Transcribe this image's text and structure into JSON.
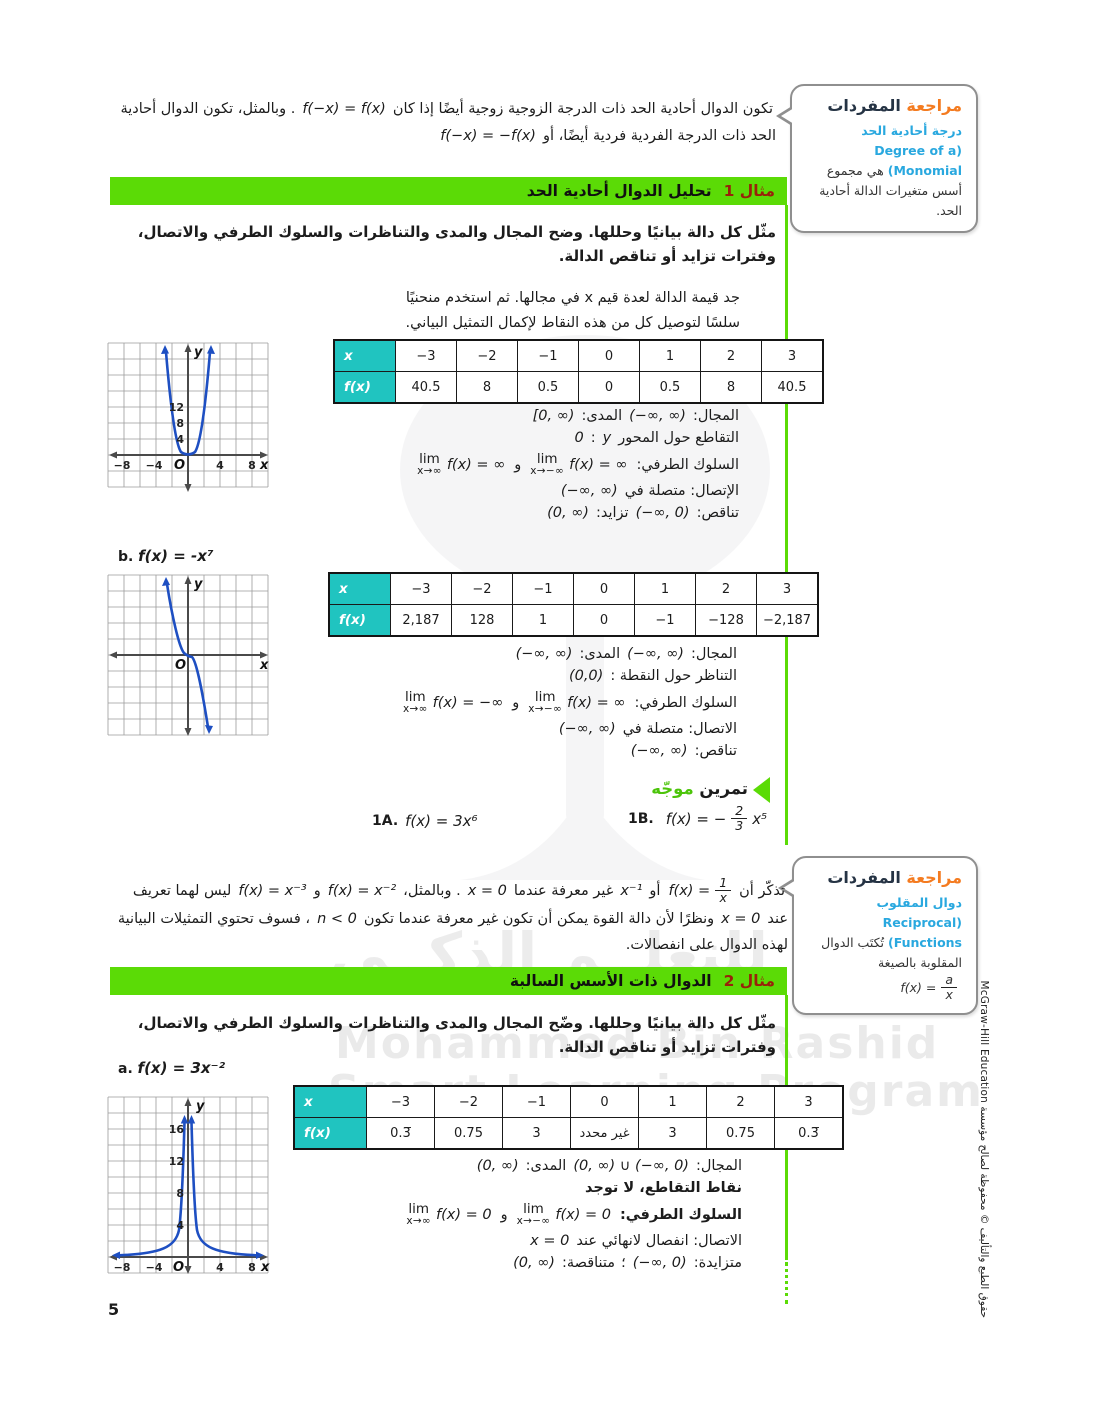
{
  "page": {
    "number": "5",
    "copyright": "حقوق الطبع والتأليف © محفوظة لصالح مؤسسة McGraw-Hill Education"
  },
  "watermark": {
    "ar": "للتعلــم الذكــي",
    "en1": "Mohammed Bin Rashid",
    "en2": "Smart Learning Program"
  },
  "sym": {
    "lim": "lim"
  },
  "vocab1": {
    "title_a": "مراجعة",
    "title_b": "المفردات",
    "term_ar": "درجة أحادية الحد",
    "term_en": "(Degree of a Monomial)",
    "body": "هي مجموع أسس متغيرات الدالة أحادية الحد."
  },
  "intro": {
    "segs": [
      [
        "t",
        "تكون الدوال أحادية الحد ذات الدرجة الزوجية زوجية أيضًا إذا كان"
      ],
      [
        "m",
        "f(−x) = f(x)"
      ],
      [
        "t",
        ". وبالمثل، تكون الدوال أحادية الحد ذات الدرجة الفردية فردية أيضًا، أو"
      ],
      [
        "m",
        "f(−x) = −f(x)"
      ]
    ]
  },
  "example1": {
    "badge": "مثال 1",
    "title": "تحليل الدوال أحادية الحد",
    "instruction": "مثّل كل دالة بيانيًا وحللها. وضح المجال والمدى والتناظرات والسلوك الطرفي والاتصال، وفترات تزايد أو تناقص الدالة.",
    "find_values": "جد قيمة الدالة لعدة قيم x في مجالها. ثم استخدم منحنيًا سلسًا لتوصيل كل من هذه النقاط لإكمال التمثيل البياني.",
    "table_a": {
      "hx": "x",
      "hfx": "f(x)",
      "x": [
        "−3",
        "−2",
        "−1",
        "0",
        "1",
        "2",
        "3"
      ],
      "fx": [
        "40.5",
        "8",
        "0.5",
        "0",
        "0.5",
        "8",
        "40.5"
      ]
    },
    "analysis_a": {
      "l1": [
        [
          "t",
          "المجال:"
        ],
        [
          "m",
          "(−∞, ∞)"
        ],
        [
          "t",
          "المدى:"
        ],
        [
          "m",
          "[0, ∞)"
        ]
      ],
      "l2": [
        [
          "t",
          "التقاطع حول المحور"
        ],
        [
          "m",
          "y"
        ],
        [
          "t",
          ":"
        ],
        [
          "m",
          "0"
        ]
      ],
      "l3": [
        [
          "t",
          "السلوك الطرفي:"
        ],
        [
          "lim",
          {
            "sub": "x→−∞",
            "expr": "f(x) = ∞"
          }
        ],
        [
          "t",
          "و"
        ],
        [
          "lim",
          {
            "sub": "x→∞",
            "expr": "f(x) = ∞"
          }
        ]
      ],
      "l4": [
        [
          "t",
          "الإتصال: متصلة في"
        ],
        [
          "m",
          "(−∞, ∞)"
        ]
      ],
      "l5": [
        [
          "t",
          "تناقص:"
        ],
        [
          "m",
          "(−∞, 0)"
        ],
        [
          "t",
          "تزايد:"
        ],
        [
          "m",
          "(0, ∞)"
        ]
      ]
    },
    "part_b": {
      "label": "b.",
      "fn": "f(x) = -x⁷"
    },
    "table_b": {
      "hx": "x",
      "hfx": "f(x)",
      "x": [
        "−3",
        "−2",
        "−1",
        "0",
        "1",
        "2",
        "3"
      ],
      "fx": [
        "2,187",
        "128",
        "1",
        "0",
        "−1",
        "−128",
        "−2,187"
      ]
    },
    "analysis_b": {
      "l1": [
        [
          "t",
          "المجال:"
        ],
        [
          "m",
          "(−∞, ∞)"
        ],
        [
          "t",
          "المدى:"
        ],
        [
          "m",
          "(−∞, ∞)"
        ]
      ],
      "l2": [
        [
          "t",
          "التناظر حول النقطة :"
        ],
        [
          "m",
          "(0,0)"
        ]
      ],
      "l3": [
        [
          "t",
          "السلوك الطرفي:"
        ],
        [
          "lim",
          {
            "sub": "x→−∞",
            "expr": "f(x) = ∞"
          }
        ],
        [
          "t",
          "و"
        ],
        [
          "lim",
          {
            "sub": "x→∞",
            "expr": "f(x) = −∞"
          }
        ]
      ],
      "l4": [
        [
          "t",
          "الاتصال: متصلة في"
        ],
        [
          "m",
          "(−∞, ∞)"
        ]
      ],
      "l5": [
        [
          "t",
          "تناقص:"
        ],
        [
          "m",
          "(−∞, ∞)"
        ]
      ]
    }
  },
  "guided": {
    "label_main": "تمرين",
    "label_accent": "موجّه",
    "ex_a": {
      "label": "1A.",
      "fn": "f(x) = 3x⁶"
    },
    "ex_b": {
      "label": "1B.",
      "pre": "f(x) = −",
      "num": "2",
      "den": "3",
      "post": "x⁵"
    }
  },
  "vocab2": {
    "title_a": "مراجعة",
    "title_b": "المفردات",
    "term_ar": "دوال المقلوب",
    "term_en": "(Reciprocal Functions)",
    "body": "تُكتَب الدوال المقلوبة بالصيغة",
    "fn": {
      "pre": "f(x) =",
      "num": "a",
      "den": "x",
      "post": ""
    }
  },
  "recall": {
    "segs": [
      [
        "t",
        "تذكّر أن"
      ],
      [
        "frac",
        {
          "pre": "f(x) =",
          "num": "1",
          "den": "x",
          "post": ""
        }
      ],
      [
        "t",
        "أو"
      ],
      [
        "m",
        "x⁻¹"
      ],
      [
        "t",
        "غير معرفة عندما"
      ],
      [
        "m",
        "x = 0"
      ],
      [
        "t",
        ". وبالمثل،"
      ],
      [
        "m",
        "f(x) = x⁻²"
      ],
      [
        "t",
        "و"
      ],
      [
        "m",
        "f(x) = x⁻³"
      ],
      [
        "t",
        "ليس لهما تعريف عند"
      ],
      [
        "m",
        "x = 0"
      ],
      [
        "t",
        "ونظرًا لأن دالة القوة يمكن أن تكون غير معرفة عندما تكون"
      ],
      [
        "m",
        "n < 0"
      ],
      [
        "t",
        "، فسوف تحتوي التمثيلات البيانية لهذه الدوال على انفصالات."
      ]
    ]
  },
  "example2": {
    "badge": "مثال 2",
    "title": "الدوال ذات الأسس السالبة",
    "instruction": "مثّل كل دالة بيانيًا وحللها. وضّح المجال والمدى والتناظرات والسلوك الطرفي والاتصال، وفترات تزايد أو تناقص الدالة.",
    "part_a": {
      "label": "a.",
      "fn": "f(x) = 3x⁻²"
    },
    "table": {
      "hx": "x",
      "hfx": "f(x)",
      "x": [
        "−3",
        "−2",
        "−1",
        "0",
        "1",
        "2",
        "3"
      ],
      "fx": [
        "0.3̅",
        "0.75",
        "3",
        "غير محدد",
        "3",
        "0.75",
        "0.3̅"
      ]
    },
    "analysis": {
      "l1": [
        [
          "t",
          "المجال:"
        ],
        [
          "m",
          "(0, ∞) ∪ (−∞, 0)"
        ],
        [
          "t",
          "المدى:"
        ],
        [
          "m",
          "(0, ∞)"
        ]
      ],
      "l2": [
        [
          "b",
          "نقاط التقاطع، لا توجد"
        ]
      ],
      "l3": [
        [
          "b",
          "السلوك الطرفي:"
        ],
        [
          "lim",
          {
            "sub": "x→−∞",
            "expr": "f(x) = 0"
          }
        ],
        [
          "t",
          "و"
        ],
        [
          "lim",
          {
            "sub": "x→∞",
            "expr": "f(x) = 0"
          }
        ]
      ],
      "l4": [
        [
          "t",
          "الاتصال: انفصال لانهائي عند"
        ],
        [
          "m",
          "x = 0"
        ]
      ],
      "l5": [
        [
          "t",
          "متزايدة:"
        ],
        [
          "m",
          "(−∞, 0)"
        ],
        [
          "t",
          "؛"
        ],
        [
          "t",
          "متناقصة:"
        ],
        [
          "m",
          "(0, ∞)"
        ]
      ]
    }
  },
  "graphs": {
    "g1": {
      "ylabel": "y",
      "xlabel": "x",
      "origin": "O",
      "yticks": [
        "12",
        "8",
        "4"
      ],
      "xticks": [
        "−8",
        "−4",
        "4",
        "8"
      ]
    },
    "g2": {
      "ylabel": "y",
      "xlabel": "x",
      "origin": "O"
    },
    "g3": {
      "ylabel": "y",
      "xlabel": "x",
      "origin": "O",
      "yticks": [
        "16",
        "12",
        "8",
        "4"
      ],
      "xticks": [
        "−8",
        "−4",
        "4",
        "8"
      ]
    }
  }
}
